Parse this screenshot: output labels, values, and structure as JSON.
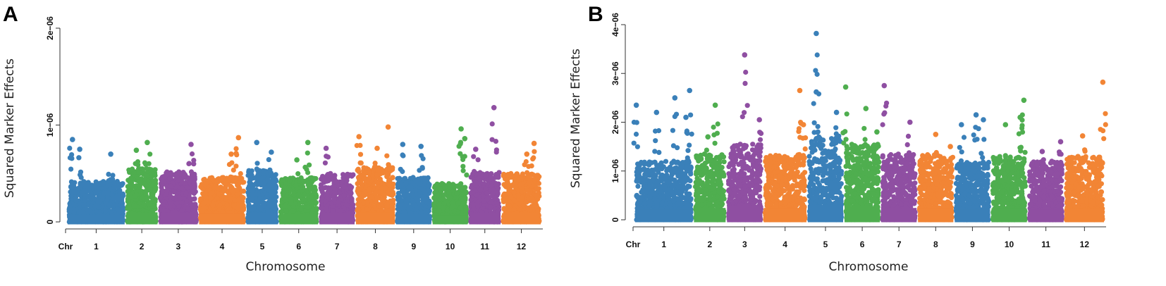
{
  "colors": {
    "blue": "#3A80B9",
    "green": "#4FAE4F",
    "purple": "#8F4FA2",
    "orange": "#F28535"
  },
  "chart_data": [
    {
      "panel": "A",
      "type": "scatter",
      "ylabel": "Squared Marker Effects",
      "xlabel": "Chromosome",
      "chr_tick_label": "Chr",
      "ylim": [
        0,
        2e-06
      ],
      "yticks": [
        0,
        1e-06,
        2e-06
      ],
      "ytick_labels": [
        "0",
        "1e−06",
        "2e−06"
      ],
      "chromosomes": [
        {
          "label": "1",
          "color": "blue",
          "range": [
            0.0,
            1.6
          ],
          "base_max": 4.2e-07,
          "peaks": [
            [
              0.15,
              8.5e-07
            ],
            [
              0.35,
              7.5e-07
            ],
            [
              1.2,
              7e-07
            ]
          ]
        },
        {
          "label": "2",
          "color": "green",
          "range": [
            1.6,
            2.5
          ],
          "base_max": 5.5e-07,
          "peaks": [
            [
              2.2,
              8.2e-07
            ],
            [
              1.9,
              7.4e-07
            ]
          ]
        },
        {
          "label": "3",
          "color": "purple",
          "range": [
            2.5,
            3.6
          ],
          "base_max": 5.2e-07,
          "peaks": [
            [
              3.4,
              8e-07
            ]
          ]
        },
        {
          "label": "4",
          "color": "orange",
          "range": [
            3.6,
            4.9
          ],
          "base_max": 4.6e-07,
          "peaks": [
            [
              4.7,
              8.7e-07
            ],
            [
              4.5,
              7e-07
            ]
          ]
        },
        {
          "label": "5",
          "color": "blue",
          "range": [
            4.9,
            5.8
          ],
          "base_max": 5.3e-07,
          "peaks": [
            [
              5.2,
              8.2e-07
            ],
            [
              5.6,
              7.2e-07
            ]
          ]
        },
        {
          "label": "6",
          "color": "green",
          "range": [
            5.8,
            6.9
          ],
          "base_max": 4.6e-07,
          "peaks": [
            [
              6.6,
              8.2e-07
            ],
            [
              6.3,
              6.4e-07
            ]
          ]
        },
        {
          "label": "7",
          "color": "purple",
          "range": [
            6.9,
            7.9
          ],
          "base_max": 5e-07,
          "peaks": [
            [
              7.1,
              7.6e-07
            ]
          ]
        },
        {
          "label": "8",
          "color": "orange",
          "range": [
            7.9,
            9.0
          ],
          "base_max": 5.6e-07,
          "peaks": [
            [
              8.0,
              8.8e-07
            ],
            [
              8.8,
              9.8e-07
            ],
            [
              8.5,
              7.6e-07
            ]
          ]
        },
        {
          "label": "9",
          "color": "blue",
          "range": [
            9.0,
            10.0
          ],
          "base_max": 4.6e-07,
          "peaks": [
            [
              9.2,
              8e-07
            ],
            [
              9.7,
              7.8e-07
            ]
          ]
        },
        {
          "label": "10",
          "color": "green",
          "range": [
            10.0,
            11.0
          ],
          "base_max": 4e-07,
          "peaks": [
            [
              10.8,
              9.6e-07
            ],
            [
              10.9,
              8.6e-07
            ]
          ]
        },
        {
          "label": "11",
          "color": "purple",
          "range": [
            11.0,
            11.9
          ],
          "base_max": 5.2e-07,
          "peaks": [
            [
              11.7,
              1.18e-06
            ],
            [
              11.2,
              7.5e-07
            ]
          ]
        },
        {
          "label": "12",
          "color": "orange",
          "range": [
            11.9,
            13.0
          ],
          "base_max": 5e-07,
          "peaks": [
            [
              12.8,
              8.1e-07
            ],
            [
              12.6,
              7e-07
            ]
          ]
        }
      ]
    },
    {
      "panel": "B",
      "type": "scatter",
      "ylabel": "Squared Marker Effects",
      "xlabel": "Chromosome",
      "chr_tick_label": "Chr",
      "ylim": [
        0,
        4e-06
      ],
      "yticks": [
        0,
        1e-06,
        2e-06,
        3e-06,
        4e-06
      ],
      "ytick_labels": [
        "0",
        "1e−06",
        "2e−06",
        "3e−06",
        "4e−06"
      ],
      "chromosomes": [
        {
          "label": "1",
          "color": "blue",
          "range": [
            0.0,
            1.6
          ],
          "base_max": 1.2e-06,
          "peaks": [
            [
              0.05,
              2.35e-06
            ],
            [
              0.6,
              2.2e-06
            ],
            [
              1.1,
              2.5e-06
            ],
            [
              1.5,
              2.65e-06
            ],
            [
              1.4,
              2.1e-06
            ]
          ]
        },
        {
          "label": "2",
          "color": "green",
          "range": [
            1.6,
            2.5
          ],
          "base_max": 1.35e-06,
          "peaks": [
            [
              2.2,
              2.35e-06
            ],
            [
              2.0,
              1.7e-06
            ]
          ]
        },
        {
          "label": "3",
          "color": "purple",
          "range": [
            2.5,
            3.5
          ],
          "base_max": 1.55e-06,
          "peaks": [
            [
              3.0,
              3.38e-06
            ],
            [
              3.4,
              2.05e-06
            ]
          ]
        },
        {
          "label": "4",
          "color": "orange",
          "range": [
            3.5,
            4.7
          ],
          "base_max": 1.35e-06,
          "peaks": [
            [
              4.5,
              2.65e-06
            ],
            [
              4.6,
              1.95e-06
            ]
          ]
        },
        {
          "label": "5",
          "color": "blue",
          "range": [
            4.7,
            5.7
          ],
          "base_max": 1.7e-06,
          "peaks": [
            [
              4.95,
              3.82e-06
            ],
            [
              4.95,
              2.62e-06
            ],
            [
              5.5,
              2.2e-06
            ]
          ]
        },
        {
          "label": "6",
          "color": "green",
          "range": [
            5.7,
            6.7
          ],
          "base_max": 1.55e-06,
          "peaks": [
            [
              5.75,
              2.72e-06
            ],
            [
              6.3,
              2.28e-06
            ],
            [
              6.6,
              1.8e-06
            ]
          ]
        },
        {
          "label": "7",
          "color": "purple",
          "range": [
            6.7,
            7.7
          ],
          "base_max": 1.35e-06,
          "peaks": [
            [
              6.8,
              2.75e-06
            ],
            [
              7.5,
              2e-06
            ]
          ]
        },
        {
          "label": "8",
          "color": "orange",
          "range": [
            7.7,
            8.7
          ],
          "base_max": 1.35e-06,
          "peaks": [
            [
              8.2,
              1.75e-06
            ],
            [
              8.6,
              1.5e-06
            ]
          ]
        },
        {
          "label": "9",
          "color": "blue",
          "range": [
            8.7,
            9.7
          ],
          "base_max": 1.2e-06,
          "peaks": [
            [
              8.9,
              1.95e-06
            ],
            [
              9.3,
              2.15e-06
            ],
            [
              9.5,
              2.05e-06
            ]
          ]
        },
        {
          "label": "10",
          "color": "green",
          "range": [
            9.7,
            10.7
          ],
          "base_max": 1.3e-06,
          "peaks": [
            [
              10.6,
              2.45e-06
            ],
            [
              10.5,
              2.1e-06
            ],
            [
              10.1,
              1.95e-06
            ]
          ]
        },
        {
          "label": "11",
          "color": "purple",
          "range": [
            10.7,
            11.7
          ],
          "base_max": 1.2e-06,
          "peaks": [
            [
              11.6,
              1.6e-06
            ],
            [
              11.1,
              1.4e-06
            ]
          ]
        },
        {
          "label": "12",
          "color": "orange",
          "range": [
            11.7,
            12.8
          ],
          "base_max": 1.3e-06,
          "peaks": [
            [
              12.75,
              2.82e-06
            ],
            [
              12.2,
              1.72e-06
            ]
          ]
        }
      ]
    }
  ]
}
